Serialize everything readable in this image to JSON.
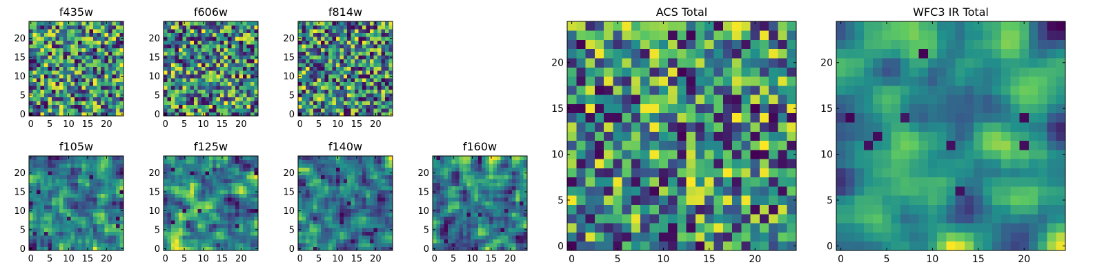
{
  "figure": {
    "background": "#ffffff"
  },
  "colormap": [
    "#440154",
    "#3b528b",
    "#21918c",
    "#5ec962",
    "#fde725"
  ],
  "chart_data": [
    {
      "type": "heatmap",
      "title": "f435w",
      "rows": 25,
      "cols": 25,
      "seed": 11,
      "smooth": 0,
      "xticks": [
        0,
        5,
        10,
        15,
        20
      ],
      "yticks": [
        0,
        5,
        10,
        15,
        20
      ],
      "xlim": [
        0,
        24
      ],
      "ylim": [
        0,
        24
      ]
    },
    {
      "type": "heatmap",
      "title": "f606w",
      "rows": 25,
      "cols": 25,
      "seed": 23,
      "smooth": 0,
      "xticks": [
        0,
        5,
        10,
        15,
        20
      ],
      "yticks": [
        0,
        5,
        10,
        15,
        20
      ],
      "xlim": [
        0,
        24
      ],
      "ylim": [
        0,
        24
      ]
    },
    {
      "type": "heatmap",
      "title": "f814w",
      "rows": 25,
      "cols": 25,
      "seed": 37,
      "smooth": 0,
      "xticks": [
        0,
        5,
        10,
        15,
        20
      ],
      "yticks": [
        0,
        5,
        10,
        15,
        20
      ],
      "xlim": [
        0,
        24
      ],
      "ylim": [
        0,
        24
      ]
    },
    {
      "type": "heatmap",
      "title": "f105w",
      "rows": 25,
      "cols": 25,
      "seed": 41,
      "smooth": 1,
      "xticks": [
        0,
        5,
        10,
        15,
        20
      ],
      "yticks": [
        0,
        5,
        10,
        15,
        20
      ],
      "xlim": [
        0,
        24
      ],
      "ylim": [
        0,
        24
      ]
    },
    {
      "type": "heatmap",
      "title": "f125w",
      "rows": 25,
      "cols": 25,
      "seed": 53,
      "smooth": 1,
      "xticks": [
        0,
        5,
        10,
        15,
        20
      ],
      "yticks": [
        0,
        5,
        10,
        15,
        20
      ],
      "xlim": [
        0,
        24
      ],
      "ylim": [
        0,
        24
      ]
    },
    {
      "type": "heatmap",
      "title": "f140w",
      "rows": 25,
      "cols": 25,
      "seed": 67,
      "smooth": 1,
      "xticks": [
        0,
        5,
        10,
        15,
        20
      ],
      "yticks": [
        0,
        5,
        10,
        15,
        20
      ],
      "xlim": [
        0,
        24
      ],
      "ylim": [
        0,
        24
      ]
    },
    {
      "type": "heatmap",
      "title": "f160w",
      "rows": 25,
      "cols": 25,
      "seed": 79,
      "smooth": 1,
      "xticks": [
        0,
        5,
        10,
        15,
        20
      ],
      "yticks": [
        0,
        5,
        10,
        15,
        20
      ],
      "xlim": [
        0,
        24
      ],
      "ylim": [
        0,
        24
      ]
    },
    {
      "type": "heatmap",
      "title": "ACS Total",
      "rows": 25,
      "cols": 25,
      "seed": 83,
      "smooth": 0,
      "xticks": [
        0,
        5,
        10,
        15,
        20
      ],
      "yticks": [
        0,
        5,
        10,
        15,
        20
      ],
      "xlim": [
        0,
        24
      ],
      "ylim": [
        0,
        24
      ]
    },
    {
      "type": "heatmap",
      "title": "WFC3 IR Total",
      "rows": 25,
      "cols": 25,
      "seed": 97,
      "smooth": 2,
      "xticks": [
        0,
        5,
        10,
        15,
        20
      ],
      "yticks": [
        0,
        5,
        10,
        15,
        20
      ],
      "xlim": [
        0,
        24
      ],
      "ylim": [
        0,
        24
      ]
    }
  ]
}
